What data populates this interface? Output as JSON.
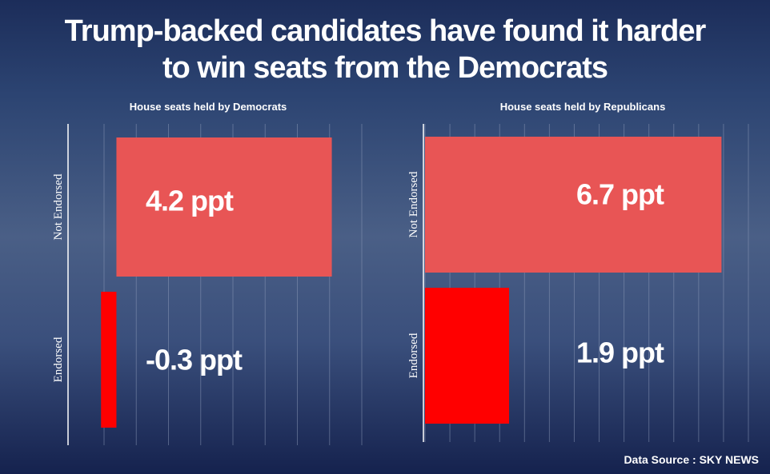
{
  "header": {
    "title_line1": "Trump-backed candidates have found it harder",
    "title_line2": "to win seats from the Democrats"
  },
  "footer": {
    "source": "Data Source : SKY NEWS"
  },
  "colors": {
    "not_endorsed_bar": "#e85555",
    "endorsed_bar": "#ff0000",
    "text": "#ffffff",
    "grid": "#8c9ab8"
  },
  "chart_data": [
    {
      "type": "bar",
      "orientation": "horizontal",
      "title": "House seats held by Democrats",
      "categories": [
        "Not Endorsed",
        "Endorsed"
      ],
      "values": [
        4.2,
        -0.3
      ],
      "value_labels": [
        "4.2 ppt",
        "-0.3 ppt"
      ],
      "unit": "ppt",
      "xlim": [
        -0.6,
        4.8
      ],
      "grid": true
    },
    {
      "type": "bar",
      "orientation": "horizontal",
      "title": "House seats held by Republicans",
      "categories": [
        "Not Endorsed",
        "Endorsed"
      ],
      "values": [
        6.7,
        1.9
      ],
      "value_labels": [
        "6.7 ppt",
        "1.9 ppt"
      ],
      "unit": "ppt",
      "xlim": [
        0,
        7.0
      ],
      "grid": true
    }
  ]
}
